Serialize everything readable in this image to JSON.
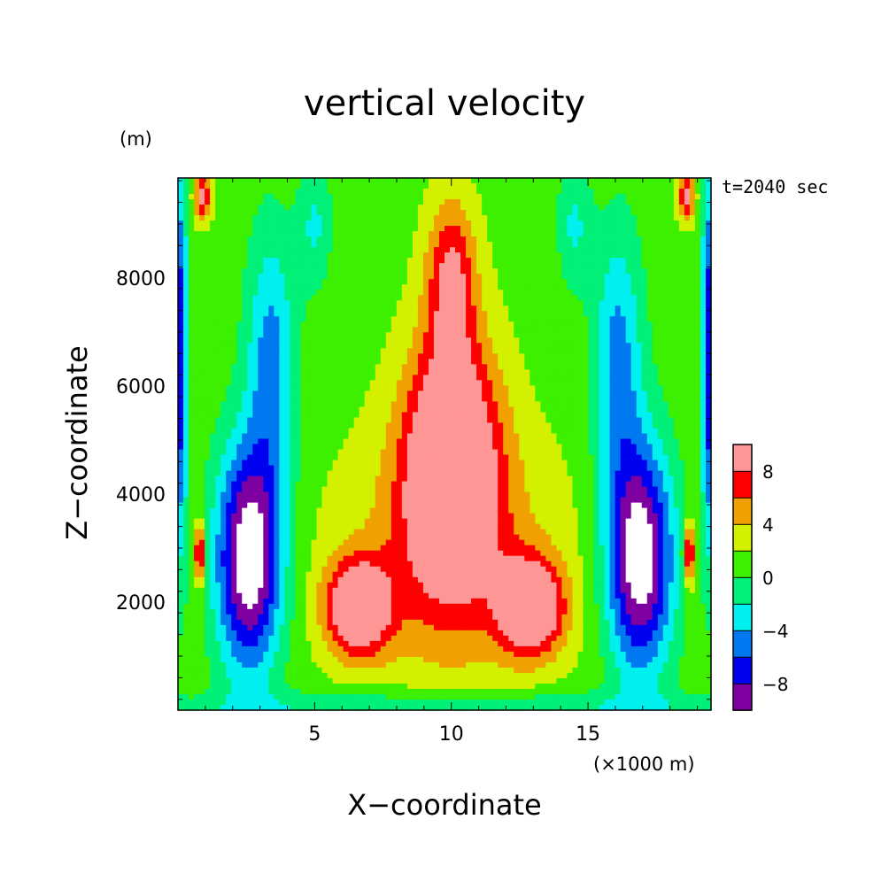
{
  "chart_data": {
    "type": "contour",
    "title": "vertical velocity",
    "xlabel": "X−coordinate",
    "ylabel": "Z−coordinate",
    "x_unit": "(×1000 m)",
    "y_unit": "(m)",
    "time_label": "t=2040 sec",
    "xlim": [
      0,
      19.5
    ],
    "ylim": [
      0,
      9850
    ],
    "x_ticks": [
      {
        "value": 5,
        "label": "5"
      },
      {
        "value": 10,
        "label": "10"
      },
      {
        "value": 15,
        "label": "15"
      }
    ],
    "y_ticks": [
      {
        "value": 2000,
        "label": "2000"
      },
      {
        "value": 4000,
        "label": "4000"
      },
      {
        "value": 6000,
        "label": "6000"
      },
      {
        "value": 8000,
        "label": "8000"
      }
    ],
    "colorbar": {
      "levels": [
        -10,
        -8,
        -6,
        -4,
        -2,
        0,
        2,
        4,
        6,
        8,
        10
      ],
      "colors": [
        "#7f00a0",
        "#0000f0",
        "#0078f0",
        "#00f0f0",
        "#00f078",
        "#3cf000",
        "#d2f000",
        "#f0a000",
        "#ff0000",
        "#ff9696"
      ],
      "labels": [
        {
          "value": -8,
          "label": "−8"
        },
        {
          "value": -4,
          "label": "−4"
        },
        {
          "value": 0,
          "label": "0"
        },
        {
          "value": 4,
          "label": "4"
        },
        {
          "value": 8,
          "label": "8"
        }
      ],
      "undershoot_color": "#ffffff"
    },
    "features": [
      {
        "name": "central updraft",
        "x": 10,
        "z_center": 4600,
        "w_max": 10
      },
      {
        "name": "left low-level updraft",
        "x": 6.5,
        "z_center": 1900,
        "w_max": 10
      },
      {
        "name": "right low-level updraft",
        "x": 13.5,
        "z_center": 1900,
        "w_max": 10
      },
      {
        "name": "left downdraft",
        "x": 2.6,
        "z_center": 2800,
        "w_min": -10
      },
      {
        "name": "right downdraft",
        "x": 17.4,
        "z_center": 2800,
        "w_min": -10
      }
    ]
  }
}
